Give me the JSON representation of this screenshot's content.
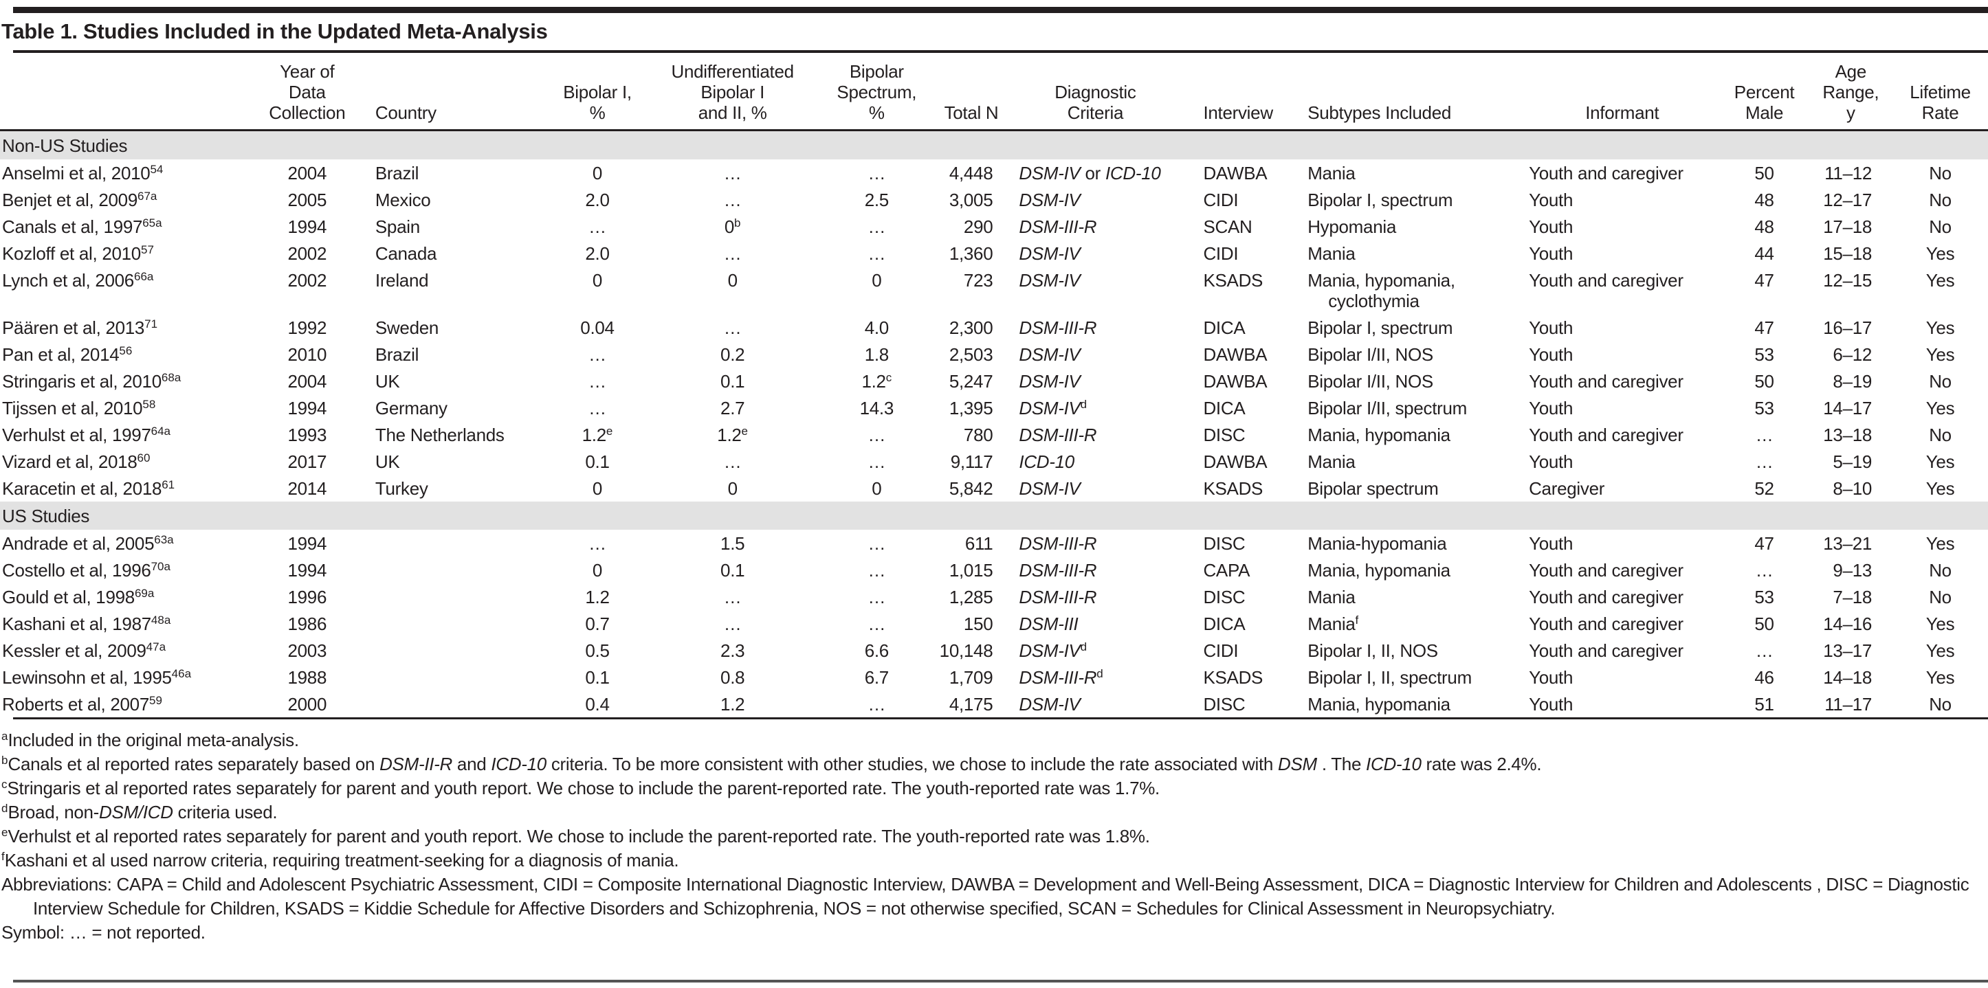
{
  "title": "Table 1. Studies Included in the Updated Meta-Analysis",
  "colors": {
    "text": "#231f20",
    "rule": "#231f20",
    "band": "#e2e2e2",
    "bottom_rule": "#555555"
  },
  "table": {
    "columns": [
      "",
      "Year of\nData\nCollection",
      "Country",
      "Bipolar I,\n%",
      "Undifferentiated\nBipolar I\nand II, %",
      "Bipolar\nSpectrum,\n%",
      "Total N",
      "Diagnostic\nCriteria",
      "Interview",
      "Subtypes Included",
      "Informant",
      "Percent\nMale",
      "Age\nRange,\ny",
      "Lifetime\nRate"
    ],
    "sections": [
      {
        "label": "Non-US Studies",
        "rows": [
          [
            "Anselmi et al, 2010^{54}",
            "2004",
            "Brazil",
            "0",
            "…",
            "…",
            "4,448",
            "*DSM-IV* or *ICD-10*",
            "DAWBA",
            "Mania",
            "Youth and caregiver",
            "50",
            "11–12",
            "No"
          ],
          [
            "Benjet et al, 2009^{67a}",
            "2005",
            "Mexico",
            "2.0",
            "…",
            "2.5",
            "3,005",
            "*DSM-IV*",
            "CIDI",
            "Bipolar I, spectrum",
            "Youth",
            "48",
            "12–17",
            "No"
          ],
          [
            "Canals et al, 1997^{65a}",
            "1994",
            "Spain",
            "…",
            "0^{b}",
            "…",
            "290",
            "*DSM-III-R*",
            "SCAN",
            "Hypomania",
            "Youth",
            "48",
            "17–18",
            "No"
          ],
          [
            "Kozloff et al, 2010^{57}",
            "2002",
            "Canada",
            "2.0",
            "…",
            "…",
            "1,360",
            "*DSM-IV*",
            "CIDI",
            "Mania",
            "Youth",
            "44",
            "15–18",
            "Yes"
          ],
          [
            "Lynch et al, 2006^{66a}",
            "2002",
            "Ireland",
            "0",
            "0",
            "0",
            "723",
            "*DSM-IV*",
            "KSADS",
            "Mania, hypomania, cyclothymia",
            "Youth and caregiver",
            "47",
            "12–15",
            "Yes"
          ],
          [
            "Päären et al, 2013^{71}",
            "1992",
            "Sweden",
            "0.04",
            "…",
            "4.0",
            "2,300",
            "*DSM-III-R*",
            "DICA",
            "Bipolar I, spectrum",
            "Youth",
            "47",
            "16–17",
            "Yes"
          ],
          [
            "Pan et al, 2014^{56}",
            "2010",
            "Brazil",
            "…",
            "0.2",
            "1.8",
            "2,503",
            "*DSM-IV*",
            "DAWBA",
            "Bipolar I/II, NOS",
            "Youth",
            "53",
            "6–12",
            "Yes"
          ],
          [
            "Stringaris et al, 2010^{68a}",
            "2004",
            "UK",
            "…",
            "0.1",
            "1.2^{c}",
            "5,247",
            "*DSM-IV*",
            "DAWBA",
            "Bipolar I/II, NOS",
            "Youth and caregiver",
            "50",
            "8–19",
            "No"
          ],
          [
            "Tijssen et al, 2010^{58}",
            "1994",
            "Germany",
            "…",
            "2.7",
            "14.3",
            "1,395",
            "*DSM-IV*^{d}",
            "DICA",
            "Bipolar I/II, spectrum",
            "Youth",
            "53",
            "14–17",
            "Yes"
          ],
          [
            "Verhulst et al, 1997^{64a}",
            "1993",
            "The Netherlands",
            "1.2^{e}",
            "1.2^{e}",
            "…",
            "780",
            "*DSM-III-R*",
            "DISC",
            "Mania, hypomania",
            "Youth and caregiver",
            "…",
            "13–18",
            "No"
          ],
          [
            "Vizard et al, 2018^{60}",
            "2017",
            "UK",
            "0.1",
            "…",
            "…",
            "9,117",
            "*ICD-10*",
            "DAWBA",
            "Mania",
            "Youth",
            "…",
            "5–19",
            "Yes"
          ],
          [
            "Karacetin et al, 2018^{61}",
            "2014",
            "Turkey",
            "0",
            "0",
            "0",
            "5,842",
            "*DSM-IV*",
            "KSADS",
            "Bipolar spectrum",
            "Caregiver",
            "52",
            "8–10",
            "Yes"
          ]
        ]
      },
      {
        "label": "US Studies",
        "rows": [
          [
            "Andrade et al, 2005^{63a}",
            "1994",
            "",
            "…",
            "1.5",
            "…",
            "611",
            "*DSM-III-R*",
            "DISC",
            "Mania-hypomania",
            "Youth",
            "47",
            "13–21",
            "Yes"
          ],
          [
            "Costello et al, 1996^{70a}",
            "1994",
            "",
            "0",
            "0.1",
            "…",
            "1,015",
            "*DSM-III-R*",
            "CAPA",
            "Mania, hypomania",
            "Youth and caregiver",
            "…",
            "9–13",
            "No"
          ],
          [
            "Gould et al, 1998^{69a}",
            "1996",
            "",
            "1.2",
            "…",
            "…",
            "1,285",
            "*DSM-III-R*",
            "DISC",
            "Mania",
            "Youth and caregiver",
            "53",
            "7–18",
            "No"
          ],
          [
            "Kashani et al, 1987^{48a}",
            "1986",
            "",
            "0.7",
            "…",
            "…",
            "150",
            "*DSM-III*",
            "DICA",
            "Mania^{f}",
            "Youth and caregiver",
            "50",
            "14–16",
            "Yes"
          ],
          [
            "Kessler et al, 2009^{47a}",
            "2003",
            "",
            "0.5",
            "2.3",
            "6.6",
            "10,148",
            "*DSM-IV*^{d}",
            "CIDI",
            "Bipolar I, II, NOS",
            "Youth and caregiver",
            "…",
            "13–17",
            "Yes"
          ],
          [
            "Lewinsohn et al, 1995^{46a}",
            "1988",
            "",
            "0.1",
            "0.8",
            "6.7",
            "1,709",
            "*DSM-III-R*^{d}",
            "KSADS",
            "Bipolar I, II, spectrum",
            "Youth",
            "46",
            "14–18",
            "Yes"
          ],
          [
            "Roberts et al, 2007^{59}",
            "2000",
            "",
            "0.4",
            "1.2",
            "…",
            "4,175",
            "*DSM-IV*",
            "DISC",
            "Mania, hypomania",
            "Youth",
            "51",
            "11–17",
            "No"
          ]
        ]
      }
    ]
  },
  "footnotes": [
    "^{a}Included in the original meta-analysis.",
    "^{b}Canals et al reported rates separately based on *DSM-II-R* and *ICD-10* criteria. To be more consistent with other studies, we chose to include the rate associated with *DSM* . The *ICD-10* rate was 2.4%.",
    "^{c}Stringaris et al reported rates separately for parent and youth report. We chose to include the parent-reported rate. The youth-reported rate was 1.7%.",
    "^{d}Broad, non-*DSM/ICD* criteria used.",
    "^{e}Verhulst et al reported rates separately for parent and youth report. We chose to include the parent-reported rate. The youth-reported rate was 1.8%.",
    "^{f}Kashani et al used narrow criteria, requiring treatment-seeking for a diagnosis of mania.",
    "Abbreviations: CAPA = Child and Adolescent Psychiatric Assessment, CIDI = Composite International Diagnostic Interview, DAWBA = Development and Well-Being Assessment, DICA = Diagnostic Interview for Children and Adolescents , DISC = Diagnostic Interview Schedule for Children, KSADS = Kiddie Schedule for Affective Disorders and Schizophrenia, NOS = not otherwise specified, SCAN = Schedules for Clinical Assessment in Neuropsychiatry.",
    "Symbol: … = not reported."
  ]
}
